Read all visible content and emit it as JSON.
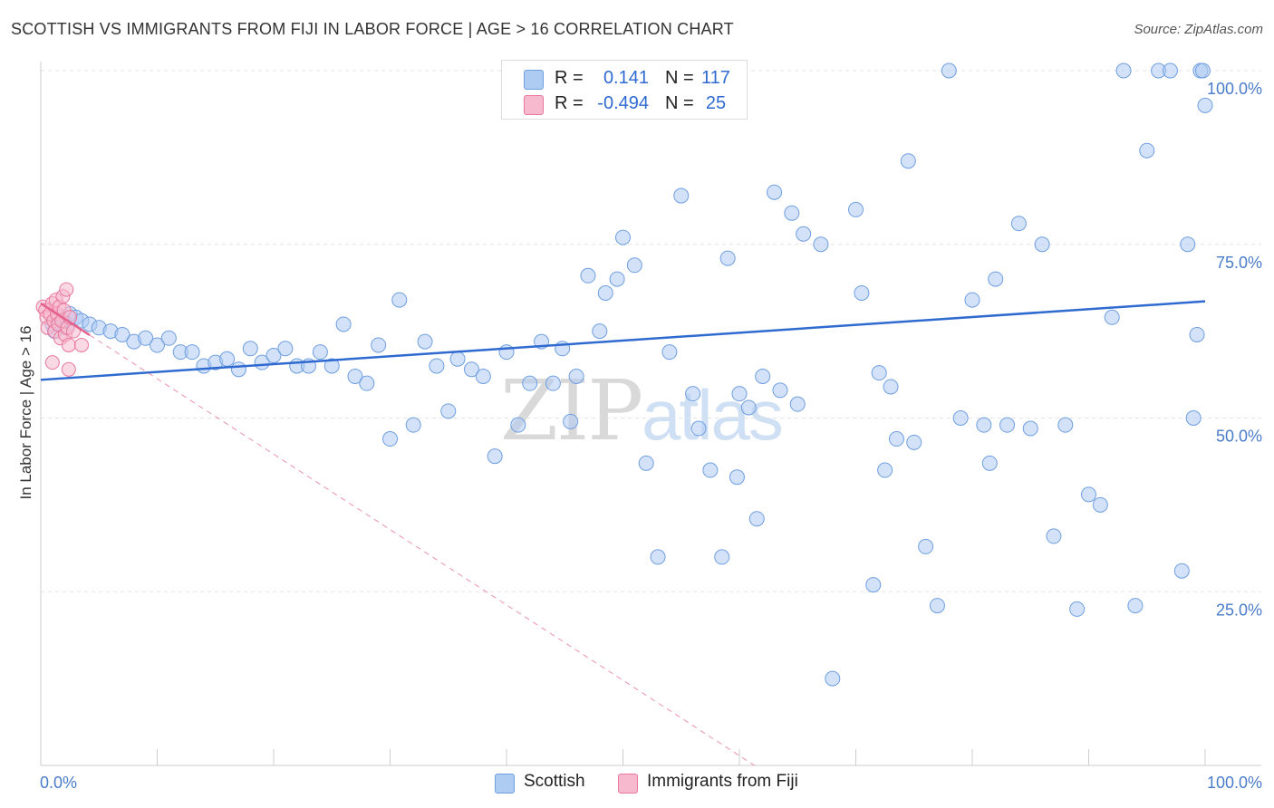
{
  "title": "SCOTTISH VS IMMIGRANTS FROM FIJI IN LABOR FORCE | AGE > 16 CORRELATION CHART",
  "source": "Source: ZipAtlas.com",
  "watermark": {
    "part1": "ZIP",
    "part2": "atlas"
  },
  "legend_top": {
    "rows": [
      {
        "r_label": "R =",
        "r_value": "0.141",
        "n_label": "N =",
        "n_value": "117",
        "color": "#aecbf2"
      },
      {
        "r_label": "R =",
        "r_value": "-0.494",
        "n_label": "N =",
        "n_value": "25",
        "color": "#f7b9cd"
      }
    ]
  },
  "legend_bottom": {
    "items": [
      {
        "label": "Scottish",
        "color": "#aecbf2"
      },
      {
        "label": "Immigrants from Fiji",
        "color": "#f7b9cd"
      }
    ]
  },
  "chart_data": {
    "type": "scatter",
    "title": "SCOTTISH VS IMMIGRANTS FROM FIJI IN LABOR FORCE | AGE > 16 CORRELATION CHART",
    "xlabel": "",
    "ylabel": "In Labor Force | Age > 16",
    "xlim": [
      0,
      100
    ],
    "ylim": [
      0,
      100
    ],
    "x_tick_labels": [
      "0.0%",
      "100.0%"
    ],
    "y_ticks": [
      25,
      50,
      75,
      100
    ],
    "y_tick_labels": [
      "25.0%",
      "50.0%",
      "75.0%",
      "100.0%"
    ],
    "grid": true,
    "legend_position": "top-center",
    "series": [
      {
        "name": "Scottish",
        "color": "#6f9fe0",
        "fill": "#aecbf2",
        "trend": {
          "x": [
            0,
            100
          ],
          "y": [
            55.5,
            66.8
          ],
          "color": "#2f6ad0",
          "style": "solid"
        },
        "points": [
          [
            1.0,
            63.5
          ],
          [
            1.5,
            64.5
          ],
          [
            2.0,
            64.0
          ],
          [
            2.5,
            65.0
          ],
          [
            3.0,
            64.5
          ],
          [
            1.2,
            62.5
          ],
          [
            2.2,
            63.0
          ],
          [
            3.5,
            64.0
          ],
          [
            4.2,
            63.5
          ],
          [
            5.0,
            63.0
          ],
          [
            6.0,
            62.5
          ],
          [
            7.0,
            62.0
          ],
          [
            8.0,
            61.0
          ],
          [
            9.0,
            61.5
          ],
          [
            10.0,
            60.5
          ],
          [
            11.0,
            61.5
          ],
          [
            12.0,
            59.5
          ],
          [
            13.0,
            59.5
          ],
          [
            14.0,
            57.5
          ],
          [
            15.0,
            58.0
          ],
          [
            16.0,
            58.5
          ],
          [
            17.0,
            57.0
          ],
          [
            18.0,
            60.0
          ],
          [
            19.0,
            58.0
          ],
          [
            20.0,
            59.0
          ],
          [
            21.0,
            60.0
          ],
          [
            22.0,
            57.5
          ],
          [
            23.0,
            57.5
          ],
          [
            24.0,
            59.5
          ],
          [
            25.0,
            57.5
          ],
          [
            26.0,
            63.5
          ],
          [
            27.0,
            56.0
          ],
          [
            28.0,
            55.0
          ],
          [
            29.0,
            60.5
          ],
          [
            30.0,
            47.0
          ],
          [
            30.8,
            67.0
          ],
          [
            32.0,
            49.0
          ],
          [
            33.0,
            61.0
          ],
          [
            34.0,
            57.5
          ],
          [
            35.0,
            51.0
          ],
          [
            35.8,
            58.5
          ],
          [
            37.0,
            57.0
          ],
          [
            38.0,
            56.0
          ],
          [
            39.0,
            44.5
          ],
          [
            40.0,
            59.5
          ],
          [
            41.0,
            49.0
          ],
          [
            42.0,
            55.0
          ],
          [
            43.0,
            61.0
          ],
          [
            44.0,
            55.0
          ],
          [
            44.8,
            60.0
          ],
          [
            45.5,
            49.5
          ],
          [
            46.0,
            56.0
          ],
          [
            47.0,
            70.5
          ],
          [
            48.0,
            62.5
          ],
          [
            48.5,
            68.0
          ],
          [
            49.5,
            70.0
          ],
          [
            50.0,
            76.0
          ],
          [
            51.0,
            72.0
          ],
          [
            52.0,
            43.5
          ],
          [
            53.0,
            30.0
          ],
          [
            54.0,
            59.5
          ],
          [
            55.0,
            82.0
          ],
          [
            56.0,
            53.5
          ],
          [
            56.5,
            48.5
          ],
          [
            57.5,
            42.5
          ],
          [
            58.5,
            30.0
          ],
          [
            59.0,
            73.0
          ],
          [
            59.8,
            41.5
          ],
          [
            60.0,
            53.5
          ],
          [
            60.8,
            51.5
          ],
          [
            61.5,
            35.5
          ],
          [
            62.0,
            56.0
          ],
          [
            63.0,
            82.5
          ],
          [
            63.5,
            54.0
          ],
          [
            64.5,
            79.5
          ],
          [
            65.0,
            52.0
          ],
          [
            65.5,
            76.5
          ],
          [
            67.0,
            75.0
          ],
          [
            68.0,
            12.5
          ],
          [
            70.0,
            80.0
          ],
          [
            70.5,
            68.0
          ],
          [
            71.5,
            26.0
          ],
          [
            72.0,
            56.5
          ],
          [
            72.5,
            42.5
          ],
          [
            73.0,
            54.5
          ],
          [
            73.5,
            47.0
          ],
          [
            74.5,
            87.0
          ],
          [
            75.0,
            46.5
          ],
          [
            76.0,
            31.5
          ],
          [
            77.0,
            23.0
          ],
          [
            78.0,
            100.0
          ],
          [
            79.0,
            50.0
          ],
          [
            80.0,
            67.0
          ],
          [
            81.0,
            49.0
          ],
          [
            81.5,
            43.5
          ],
          [
            82.0,
            70.0
          ],
          [
            83.0,
            49.0
          ],
          [
            84.0,
            78.0
          ],
          [
            85.0,
            48.5
          ],
          [
            86.0,
            75.0
          ],
          [
            87.0,
            33.0
          ],
          [
            88.0,
            49.0
          ],
          [
            89.0,
            22.5
          ],
          [
            90.0,
            39.0
          ],
          [
            91.0,
            37.5
          ],
          [
            92.0,
            64.5
          ],
          [
            93.0,
            100.0
          ],
          [
            94.0,
            23.0
          ],
          [
            95.0,
            88.5
          ],
          [
            96.0,
            100.0
          ],
          [
            97.0,
            100.0
          ],
          [
            98.0,
            28.0
          ],
          [
            98.5,
            75.0
          ],
          [
            99.0,
            50.0
          ],
          [
            99.3,
            62.0
          ],
          [
            99.6,
            100.0
          ],
          [
            99.8,
            100.0
          ],
          [
            100.0,
            95.0
          ]
        ]
      },
      {
        "name": "Immigrants from Fiji",
        "color": "#e8779c",
        "fill": "#f7b9cd",
        "trend": {
          "x": [
            0,
            100
          ],
          "y": [
            66.5,
            -42
          ],
          "color": "#e4628e",
          "style": "solid-then-dashed"
        },
        "points": [
          [
            0.2,
            66.0
          ],
          [
            0.4,
            65.5
          ],
          [
            0.5,
            64.5
          ],
          [
            0.6,
            63.0
          ],
          [
            0.8,
            65.0
          ],
          [
            1.0,
            66.5
          ],
          [
            1.1,
            64.0
          ],
          [
            1.2,
            62.5
          ],
          [
            1.3,
            67.0
          ],
          [
            1.4,
            65.0
          ],
          [
            1.5,
            63.5
          ],
          [
            1.6,
            66.0
          ],
          [
            1.7,
            61.5
          ],
          [
            1.8,
            64.0
          ],
          [
            1.9,
            67.5
          ],
          [
            2.0,
            65.5
          ],
          [
            2.1,
            62.0
          ],
          [
            2.2,
            68.5
          ],
          [
            2.3,
            63.0
          ],
          [
            2.4,
            60.5
          ],
          [
            2.5,
            64.5
          ],
          [
            1.0,
            58.0
          ],
          [
            2.4,
            57.0
          ],
          [
            3.5,
            60.5
          ],
          [
            2.8,
            62.5
          ]
        ]
      }
    ]
  }
}
